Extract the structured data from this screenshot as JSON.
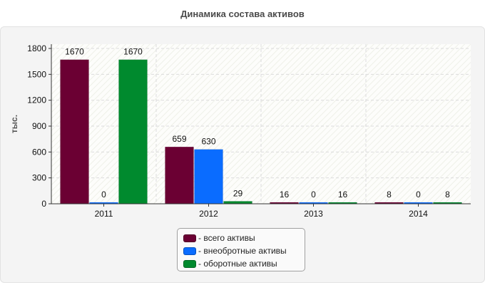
{
  "chart_data": {
    "type": "bar",
    "title": "Динамика состава активов",
    "ylabel": "тыс.",
    "xlabel": "",
    "categories": [
      "2011",
      "2012",
      "2013",
      "2014"
    ],
    "series": [
      {
        "name": "- всего активы",
        "color": "#6b0033",
        "values": [
          1670,
          659,
          16,
          8
        ]
      },
      {
        "name": "- внеобротные активы",
        "color": "#0a6cff",
        "values": [
          0,
          630,
          0,
          0
        ]
      },
      {
        "name": "- оборотные активы",
        "color": "#008a2e",
        "values": [
          1670,
          29,
          16,
          8
        ]
      }
    ],
    "ylim": [
      0,
      1800
    ],
    "yticks": [
      "0",
      "300",
      "600",
      "900",
      "1200",
      "1500",
      "1800"
    ],
    "grid": true,
    "legend_position": "bottom-center"
  }
}
